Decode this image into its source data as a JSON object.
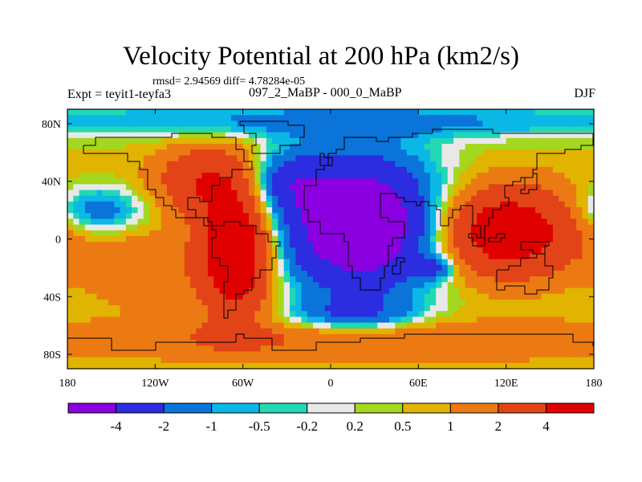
{
  "header": {
    "title": "Velocity Potential at 200 hPa (km2/s)",
    "stats": "rmsd= 2.94569 diff= 4.78284e-05",
    "experiment": "Expt = teyit1-teyfa3",
    "difference_label": "097_2_MaBP - 000_0_MaBP",
    "season": "DJF"
  },
  "chart_data": {
    "type": "heatmap",
    "title": "Velocity Potential at 200 hPa (km2/s)",
    "subtitle": "rmsd= 2.94569 diff= 4.78284e-05",
    "xlabel": "",
    "ylabel": "",
    "xlim": [
      -180,
      180
    ],
    "ylim": [
      -90,
      90
    ],
    "x_ticks": [
      {
        "value": -180,
        "label": "180"
      },
      {
        "value": -120,
        "label": "120W"
      },
      {
        "value": -60,
        "label": "60W"
      },
      {
        "value": 0,
        "label": "0"
      },
      {
        "value": 60,
        "label": "60E"
      },
      {
        "value": 120,
        "label": "120E"
      },
      {
        "value": 180,
        "label": "180"
      }
    ],
    "y_ticks": [
      {
        "value": 80,
        "label": "80N"
      },
      {
        "value": 40,
        "label": "40N"
      },
      {
        "value": 0,
        "label": "0"
      },
      {
        "value": -40,
        "label": "40S"
      },
      {
        "value": -80,
        "label": "80S"
      }
    ],
    "colorbar": {
      "boundaries": [
        -4,
        -2,
        -1,
        -0.5,
        -0.2,
        0.2,
        0.5,
        1,
        2,
        4
      ],
      "labels": [
        "-4",
        "-2",
        "-1",
        "-0.5",
        "-0.2",
        "0.2",
        "0.5",
        "1",
        "2",
        "4"
      ],
      "colors": [
        "#8a00e0",
        "#2c2ce0",
        "#0b74da",
        "#0ab8e6",
        "#22d8b4",
        "#e8e8e8",
        "#a4d81e",
        "#e0b400",
        "#ec7a12",
        "#e24418",
        "#e00000"
      ]
    },
    "features": [
      {
        "name": "negative center Africa / Indian Ocean",
        "lon": 20,
        "lat": 10,
        "rx": 52,
        "ry": 46,
        "value": -7.5
      },
      {
        "name": "negative North Atlantic",
        "lon": -30,
        "lat": 40,
        "rx": 26,
        "ry": 20,
        "value": -2.5
      },
      {
        "name": "negative Arctic band",
        "lon": 0,
        "lat": 82,
        "rx": 260,
        "ry": 12,
        "value": -1.8
      },
      {
        "name": "negative North Pacific",
        "lon": -160,
        "lat": 20,
        "rx": 32,
        "ry": 16,
        "value": -2.2
      },
      {
        "name": "negative western Indian Ocean",
        "lon": 72,
        "lat": -20,
        "rx": 12,
        "ry": 8,
        "value": -2.4
      },
      {
        "name": "negative Southern Ocean",
        "lon": 15,
        "lat": -52,
        "rx": 42,
        "ry": 11,
        "value": -2.0
      },
      {
        "name": "positive South America",
        "lon": -65,
        "lat": -10,
        "rx": 24,
        "ry": 40,
        "value": 6.5
      },
      {
        "name": "positive North America",
        "lon": -85,
        "lat": 40,
        "rx": 34,
        "ry": 24,
        "value": 3.2
      },
      {
        "name": "positive Asia / West Pacific",
        "lon": 120,
        "lat": 5,
        "rx": 48,
        "ry": 30,
        "value": 5.5
      },
      {
        "name": "positive southern belt",
        "lon": 10,
        "lat": -70,
        "rx": 240,
        "ry": 14,
        "value": 1.6
      },
      {
        "name": "positive eastern Pacific",
        "lon": -130,
        "lat": -20,
        "rx": 40,
        "ry": 26,
        "value": 1.3
      }
    ]
  }
}
